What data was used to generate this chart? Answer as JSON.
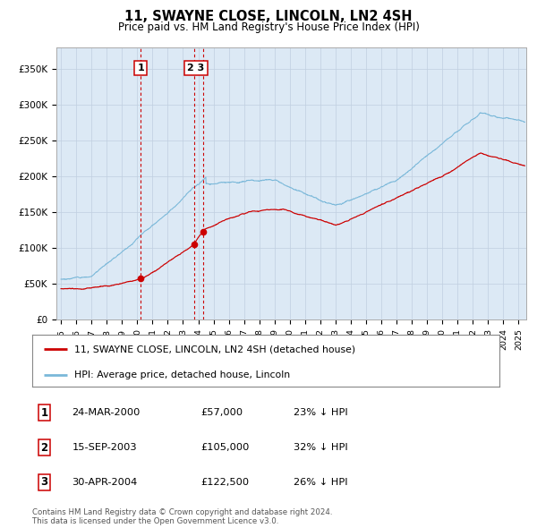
{
  "title": "11, SWAYNE CLOSE, LINCOLN, LN2 4SH",
  "subtitle": "Price paid vs. HM Land Registry's House Price Index (HPI)",
  "background_color": "#ffffff",
  "plot_bg_color": "#dce9f5",
  "hpi_color": "#7ab8d9",
  "price_color": "#cc0000",
  "marker_color": "#cc0000",
  "vline_color": "#cc0000",
  "grid_color": "#c0cfe0",
  "transactions": [
    {
      "num": 1,
      "date": "24-MAR-2000",
      "price": 57000,
      "pct": "23% ↓ HPI",
      "x_year": 2000.22
    },
    {
      "num": 2,
      "date": "15-SEP-2003",
      "price": 105000,
      "pct": "32% ↓ HPI",
      "x_year": 2003.71
    },
    {
      "num": 3,
      "date": "30-APR-2004",
      "price": 122500,
      "pct": "26% ↓ HPI",
      "x_year": 2004.33
    }
  ],
  "legend_label_price": "11, SWAYNE CLOSE, LINCOLN, LN2 4SH (detached house)",
  "legend_label_hpi": "HPI: Average price, detached house, Lincoln",
  "footer": "Contains HM Land Registry data © Crown copyright and database right 2024.\nThis data is licensed under the Open Government Licence v3.0.",
  "ylim": [
    0,
    380000
  ],
  "xlim_start": 1994.7,
  "xlim_end": 2025.5,
  "yticks": [
    0,
    50000,
    100000,
    150000,
    200000,
    250000,
    300000,
    350000
  ],
  "yticklabels": [
    "£0",
    "£50K",
    "£100K",
    "£150K",
    "£200K",
    "£250K",
    "£300K",
    "£350K"
  ],
  "xtick_years": [
    1995,
    1996,
    1997,
    1998,
    1999,
    2000,
    2001,
    2002,
    2003,
    2004,
    2005,
    2006,
    2007,
    2008,
    2009,
    2010,
    2011,
    2012,
    2013,
    2014,
    2015,
    2016,
    2017,
    2018,
    2019,
    2020,
    2021,
    2022,
    2023,
    2024,
    2025
  ]
}
